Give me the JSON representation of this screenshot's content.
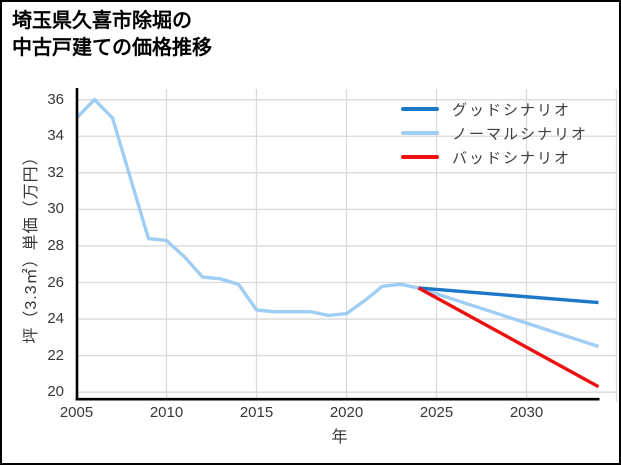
{
  "title": {
    "line1": "埼玉県久喜市除堀の",
    "line2": "中古戸建ての価格推移"
  },
  "legend": {
    "items": [
      {
        "label": "グッドシナリオ",
        "color": "#1b78c9"
      },
      {
        "label": "ノーマルシナリオ",
        "color": "#a0cdf2"
      },
      {
        "label": "バッドシナリオ",
        "color": "#ee1111"
      }
    ]
  },
  "chart_data": {
    "type": "line",
    "title": "埼玉県久喜市除堀の中古戸建ての価格推移",
    "xlabel": "年",
    "ylabel": "坪（3.3㎡）単価（万円）",
    "xlim": [
      2005,
      2035
    ],
    "ylim": [
      19,
      36.5
    ],
    "x_ticks": [
      2005,
      2010,
      2015,
      2020,
      2025,
      2030
    ],
    "y_ticks": [
      20,
      22,
      24,
      26,
      28,
      30,
      32,
      34,
      36
    ],
    "grid": true,
    "legend_position": "upper right",
    "colors": {
      "good": "#1b78c9",
      "normal": "#a0cdf2",
      "bad": "#ee1111",
      "gridline": "#d9d9d9",
      "axis": "#000000"
    },
    "series": [
      {
        "name": "historical",
        "in_legend": false,
        "color": "#a0cdf2",
        "x": [
          2005,
          2006,
          2007,
          2008,
          2009,
          2010,
          2011,
          2012,
          2013,
          2014,
          2015,
          2016,
          2017,
          2018,
          2019,
          2020,
          2021,
          2022,
          2023,
          2024
        ],
        "y": [
          35.0,
          36.0,
          35.0,
          31.7,
          28.4,
          28.3,
          27.4,
          26.3,
          26.2,
          25.9,
          24.5,
          24.4,
          24.4,
          24.4,
          24.2,
          24.3,
          25.0,
          25.8,
          25.9,
          25.7
        ]
      },
      {
        "name": "ノーマルシナリオ",
        "in_legend": true,
        "color": "#a0cdf2",
        "x": [
          2024,
          2034
        ],
        "y": [
          25.7,
          22.5
        ]
      },
      {
        "name": "グッドシナリオ",
        "in_legend": true,
        "color": "#1b78c9",
        "x": [
          2024,
          2034
        ],
        "y": [
          25.7,
          24.9
        ]
      },
      {
        "name": "バッドシナリオ",
        "in_legend": true,
        "color": "#ee1111",
        "x": [
          2024,
          2034
        ],
        "y": [
          25.7,
          20.3
        ]
      }
    ]
  }
}
